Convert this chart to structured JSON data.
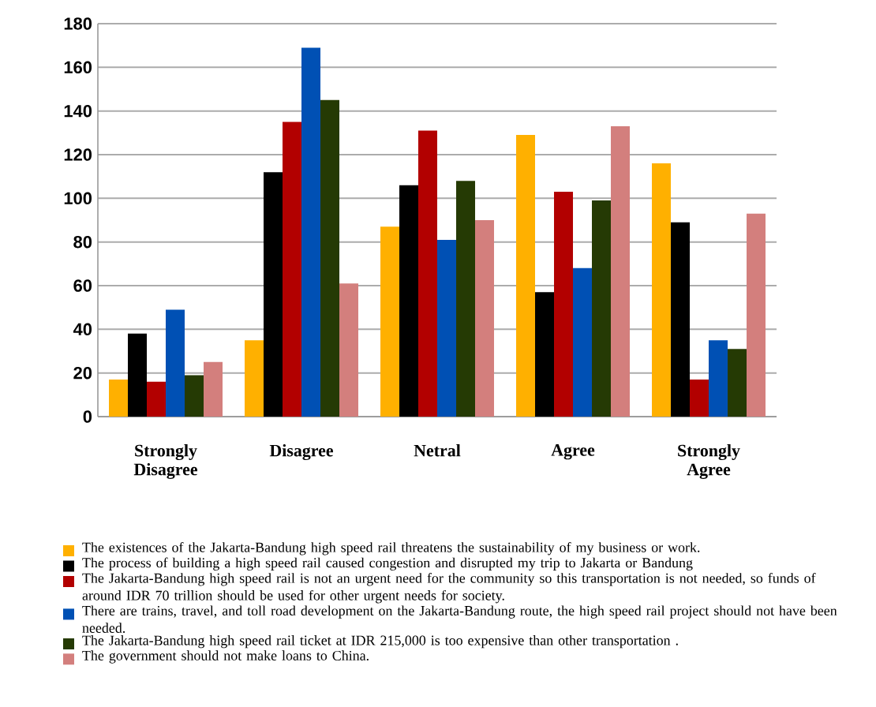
{
  "chart_data": {
    "type": "bar",
    "categories": [
      "Strongly Disagree",
      "Disagree",
      "Netral",
      "Agree",
      "Strongly Agree"
    ],
    "series": [
      {
        "name": "The existences of the Jakarta-Bandung high speed rail threatens the sustainability of my business or work.",
        "color": "#ffb000",
        "values": [
          17,
          35,
          87,
          129,
          116
        ]
      },
      {
        "name": "The process of building a high speed rail caused congestion and disrupted my trip to Jakarta or Bandung",
        "color": "#000000",
        "values": [
          38,
          112,
          106,
          57,
          89
        ]
      },
      {
        "name": "The Jakarta-Bandung high speed rail is not an urgent need for the community so this transportation is not needed, so funds of around IDR 70 trillion should be used for other urgent needs for society.",
        "color": "#b20000",
        "values": [
          16,
          135,
          131,
          103,
          17
        ]
      },
      {
        "name": "There are trains, travel, and toll road development on the Jakarta-Bandung route, the high speed rail project should not have been needed.",
        "color": "#0050b4",
        "values": [
          49,
          169,
          81,
          68,
          35
        ]
      },
      {
        "name": "The Jakarta-Bandung high speed rail ticket at IDR 215,000 is  too expensive than other transportation .",
        "color": "#253a04",
        "values": [
          19,
          145,
          108,
          99,
          31
        ]
      },
      {
        "name": "The government should not make loans to China.",
        "color": "#d37f7d",
        "values": [
          25,
          61,
          90,
          133,
          93
        ]
      }
    ],
    "ylim": [
      0,
      180
    ],
    "yticks": [
      0,
      20,
      40,
      60,
      80,
      100,
      120,
      140,
      160,
      180
    ],
    "grid": "y",
    "legend": "bottom"
  }
}
